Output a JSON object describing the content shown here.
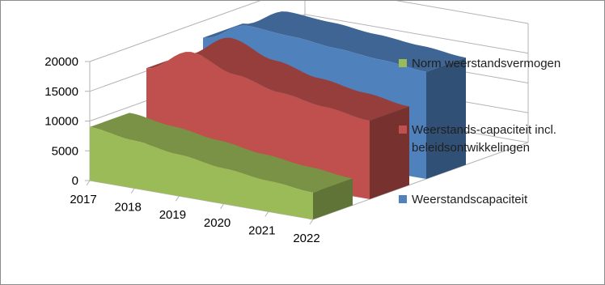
{
  "chart_data": {
    "type": "area",
    "three_d": true,
    "categories": [
      "2017",
      "2018",
      "2019",
      "2020",
      "2021",
      "2022"
    ],
    "ylim": [
      0,
      20000
    ],
    "yticks": [
      "0",
      "5000",
      "10000",
      "15000",
      "20000"
    ],
    "grid": true,
    "legend_position": "right",
    "series": [
      {
        "name": "Weerstandscapaciteit",
        "color": "#4f81bd",
        "values": [
          17200,
          20500,
          20000,
          19300,
          18700,
          18000
        ]
      },
      {
        "name": "Weerstands-capaciteit incl. beleidsontwikkelingen",
        "color": "#c0504d",
        "values": [
          15500,
          19500,
          17000,
          15300,
          14200,
          13200
        ]
      },
      {
        "name": "Norm weerstandsvermogen",
        "color": "#9bbb59",
        "values": [
          9000,
          8000,
          7000,
          6000,
          5200,
          4500
        ]
      }
    ]
  }
}
